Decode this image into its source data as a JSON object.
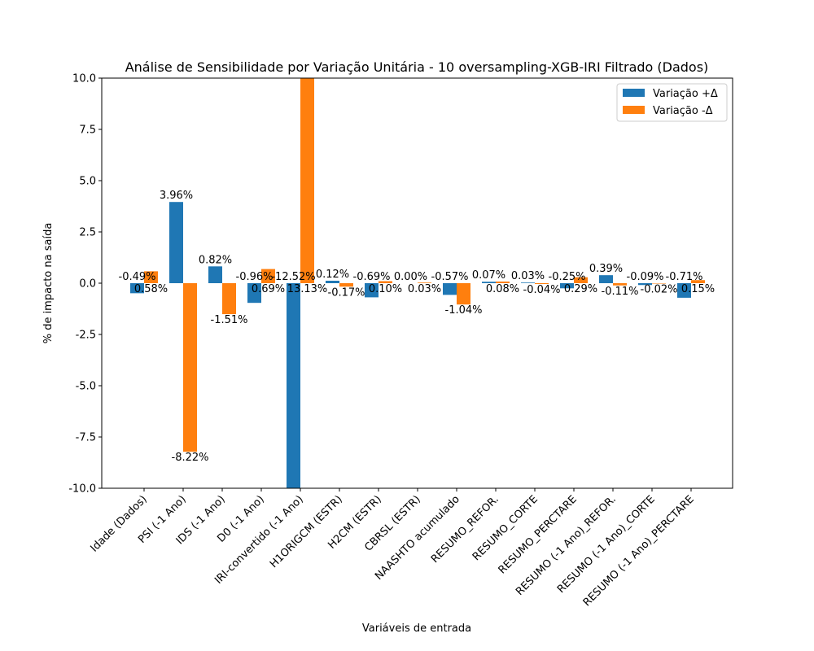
{
  "chart_data": {
    "type": "bar",
    "title": "Análise de Sensibilidade por Variação Unitária - 10 oversampling-XGB-IRI Filtrado (Dados)",
    "x_label": "Variáveis de entrada",
    "y_label": "% de impacto na saída",
    "categories": [
      "Idade (Dados)",
      "PSI (-1 Ano)",
      "IDS (-1 Ano)",
      "D0 (-1 Ano)",
      "IRI-convertido (-1 Ano)",
      "H1ORIGCM (ESTR)",
      "H2CM (ESTR)",
      "CBRSL (ESTR)",
      "NAASHTO acumulado",
      "RESUMO_REFOR.",
      "RESUMO_CORTE",
      "RESUMO_PERCTARE",
      "RESUMO (-1 Ano)_REFOR.",
      "RESUMO (-1 Ano)_CORTE",
      "RESUMO (-1 Ano)_PERCTARE"
    ],
    "series": [
      {
        "name": "Variação +Δ",
        "color": "#1f77b4",
        "values": [
          -0.49,
          3.96,
          0.82,
          -0.96,
          -12.52,
          0.12,
          -0.69,
          0.0,
          -0.57,
          0.07,
          0.03,
          -0.25,
          0.39,
          -0.09,
          -0.71
        ],
        "value_labels": [
          "-0.49%",
          "3.96%",
          "0.82%",
          "-0.96%",
          "-12.52%",
          "0.12%",
          "-0.69%",
          "0.00%",
          "-0.57%",
          "0.07%",
          "0.03%",
          "-0.25%",
          "0.39%",
          "-0.09%",
          "-0.71%"
        ]
      },
      {
        "name": "Variação -Δ",
        "color": "#ff7f0e",
        "values": [
          0.58,
          -8.22,
          -1.51,
          0.69,
          13.13,
          -0.17,
          0.1,
          0.03,
          -1.04,
          0.08,
          -0.04,
          0.29,
          -0.11,
          -0.02,
          0.15
        ],
        "value_labels": [
          "0.58%",
          "-8.22%",
          "-1.51%",
          "0.69%",
          "13.13%",
          "-0.17%",
          "0.10%",
          "0.03%",
          "-1.04%",
          "0.08%",
          "-0.04%",
          "0.29%",
          "-0.11%",
          "-0.02%",
          "0.15%"
        ]
      }
    ],
    "ylim": [
      -10,
      10
    ],
    "yticks": [
      {
        "value": -10,
        "label": "-10.0"
      },
      {
        "value": -7.5,
        "label": "-7.5"
      },
      {
        "value": -5,
        "label": "-5.0"
      },
      {
        "value": -2.5,
        "label": "-2.5"
      },
      {
        "value": 0,
        "label": "0.0"
      },
      {
        "value": 2.5,
        "label": "2.5"
      },
      {
        "value": 5,
        "label": "5.0"
      },
      {
        "value": 7.5,
        "label": "7.5"
      },
      {
        "value": 10,
        "label": "10.0"
      }
    ],
    "legend": "upper right"
  }
}
